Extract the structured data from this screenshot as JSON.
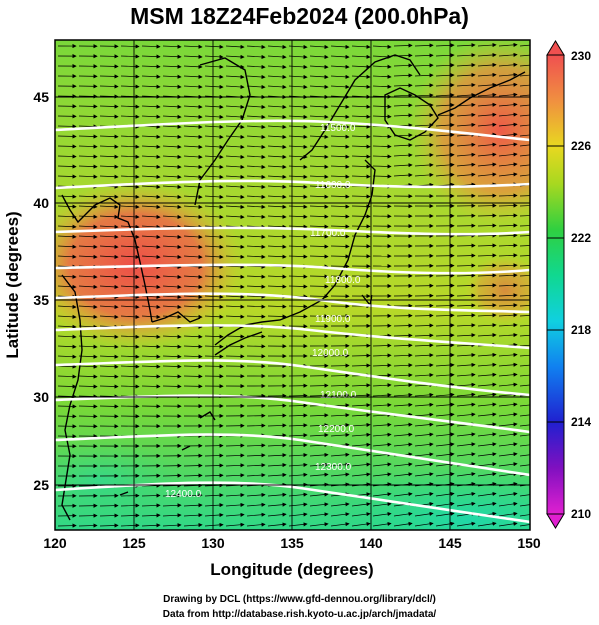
{
  "title": "MSM 18Z24Feb2024 (200.0hPa)",
  "xaxis": {
    "label": "Longitude (degrees)",
    "ticks": [
      "120",
      "125",
      "130",
      "135",
      "140",
      "145",
      "150"
    ]
  },
  "yaxis": {
    "label": "Latitude  (degrees)",
    "ticks": [
      "45",
      "40",
      "35",
      "30",
      "25"
    ]
  },
  "colorbar": {
    "ticks": [
      "230",
      "226",
      "222",
      "218",
      "214",
      "210"
    ]
  },
  "contour_labels": [
    "11500.0",
    "11600.0",
    "11700.0",
    "11800.0",
    "11900.0",
    "12000.0",
    "12100.0",
    "12200.0",
    "12300.0",
    "12400.0"
  ],
  "credits": {
    "line1": "Drawing by DCL (https://www.gfd-dennou.org/library/dcl/)",
    "line2": "Data from http://database.rish.kyoto-u.ac.jp/arch/jmadata/"
  },
  "colors": {
    "warm": "#ee5a4a",
    "mid": "#e0d020",
    "green": "#48d040",
    "cool": "#30d890"
  }
}
